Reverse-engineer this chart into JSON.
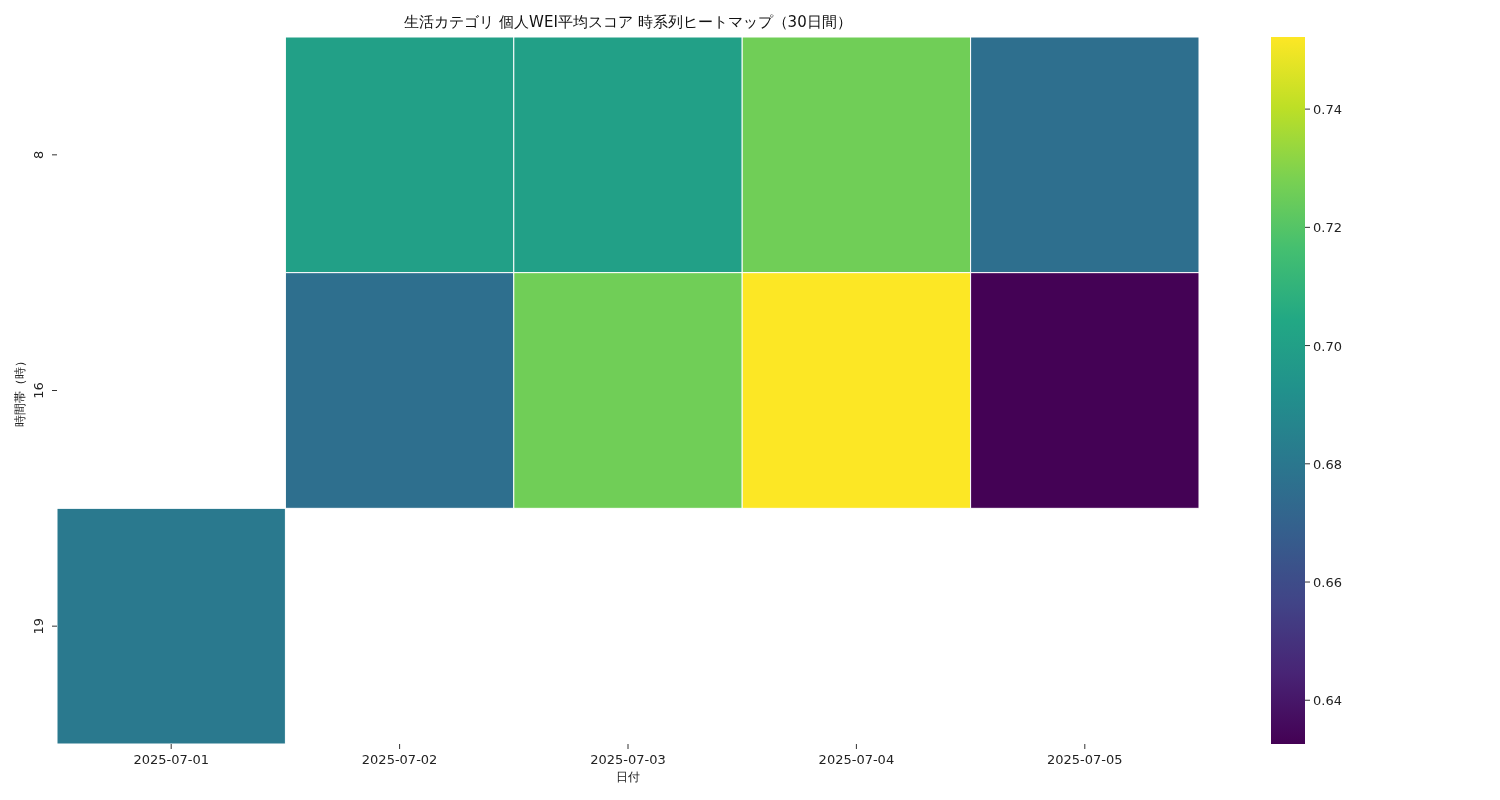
{
  "chart_data": {
    "type": "heatmap",
    "title": "生活カテゴリ 個人WEI平均スコア 時系列ヒートマップ（30日間）",
    "xlabel": "日付",
    "ylabel": "時間帯（時）",
    "categories": [
      "2025-07-01",
      "2025-07-02",
      "2025-07-03",
      "2025-07-04",
      "2025-07-05"
    ],
    "y_categories": [
      "8",
      "16",
      "19"
    ],
    "cells": [
      [
        null,
        0.7,
        0.7,
        0.726,
        0.676
      ],
      [
        null,
        0.676,
        0.726,
        0.752,
        0.633
      ],
      [
        0.681,
        null,
        null,
        null,
        null
      ]
    ],
    "clim": [
      0.6326,
      0.7522
    ],
    "cticks": [
      {
        "value": 0.64,
        "label": "0.64"
      },
      {
        "value": 0.66,
        "label": "0.66"
      },
      {
        "value": 0.68,
        "label": "0.68"
      },
      {
        "value": 0.7,
        "label": "0.70"
      },
      {
        "value": 0.72,
        "label": "0.72"
      },
      {
        "value": 0.74,
        "label": "0.74"
      }
    ]
  }
}
